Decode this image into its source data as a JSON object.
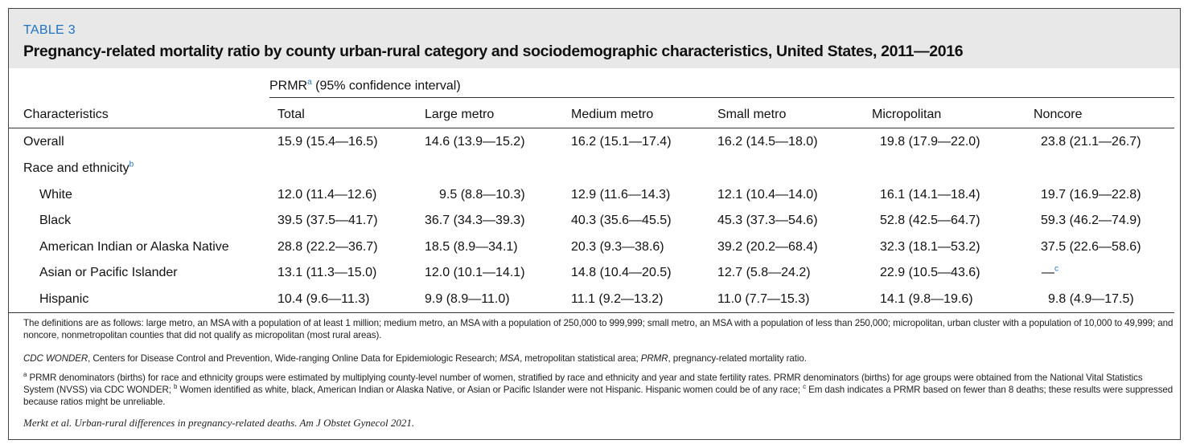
{
  "header": {
    "table_label": "TABLE 3",
    "title": "Pregnancy-related mortality ratio by county urban-rural category and sociodemographic characteristics, United States, 2011—2016"
  },
  "spanner": {
    "label": "PRMR",
    "sup": "a",
    "suffix": " (95% confidence interval)"
  },
  "columns": [
    "Characteristics",
    "Total",
    "Large metro",
    "Medium metro",
    "Small metro",
    "Micropolitan",
    "Noncore"
  ],
  "rows": [
    {
      "label": "Overall",
      "indent": false,
      "values": [
        "15.9 (15.4—16.5)",
        "14.6 (13.9—15.2)",
        "16.2 (15.1—17.4)",
        "16.2 (14.5—18.0)",
        "19.8 (17.9—22.0)",
        "23.8 (21.1—26.7)"
      ]
    },
    {
      "label": "Race and ethnicity",
      "sup": "b",
      "indent": false,
      "values": []
    },
    {
      "label": "White",
      "indent": true,
      "values": [
        "12.0 (11.4—12.6)",
        "9.5 (8.8—10.3)",
        "12.9 (11.6—14.3)",
        "12.1 (10.4—14.0)",
        "16.1 (14.1—18.4)",
        "19.7 (16.9—22.8)"
      ]
    },
    {
      "label": "Black",
      "indent": true,
      "values": [
        "39.5 (37.5—41.7)",
        "36.7 (34.3—39.3)",
        "40.3 (35.6—45.5)",
        "45.3 (37.3—54.6)",
        "52.8 (42.5—64.7)",
        "59.3 (46.2—74.9)"
      ]
    },
    {
      "label": "American Indian or Alaska Native",
      "indent": true,
      "values": [
        "28.8 (22.2—36.7)",
        "18.5 (8.9—34.1)",
        "20.3 (9.3—38.6)",
        "39.2 (20.2—68.4)",
        "32.3 (18.1—53.2)",
        "37.5 (22.6—58.6)"
      ]
    },
    {
      "label": "Asian or Pacific Islander",
      "indent": true,
      "values": [
        "13.1 (11.3—15.0)",
        "12.0 (10.1—14.1)",
        "14.8 (10.4—20.5)",
        "12.7 (5.8—24.2)",
        "22.9 (10.5—43.6)",
        "—"
      ],
      "last_sup": "c"
    },
    {
      "label": "Hispanic",
      "indent": true,
      "values": [
        "10.4 (9.6—11.3)",
        "9.9 (8.9—11.0)",
        "11.1 (9.2—13.2)",
        "11.0 (7.7—15.3)",
        "14.1 (9.8—19.6)",
        "9.8 (4.9—17.5)"
      ]
    }
  ],
  "notes": {
    "definitions": "The definitions are as follows: large metro, an MSA with a population of at least 1 million; medium metro, an MSA with a population of 250,000 to 999,999; small metro, an MSA with a population of less than 250,000; micropolitan, urban cluster with a population of 10,000 to 49,999; and noncore, nonmetropolitan counties that did not qualify as micropolitan (most rural areas).",
    "abbrev_1_term": "CDC WONDER",
    "abbrev_1_text": ", Centers for Disease Control and Prevention, Wide-ranging Online Data for Epidemiologic Research; ",
    "abbrev_2_term": "MSA",
    "abbrev_2_text": ", metropolitan statistical area; ",
    "abbrev_3_term": "PRMR",
    "abbrev_3_text": ", pregnancy-related mortality ratio.",
    "fn_a_mark": "a",
    "fn_a_text": " PRMR denominators (births) for race and ethnicity groups were estimated by multiplying county-level number of women, stratified by race and ethnicity and year and state fertility rates. PRMR denominators (births) for age groups were obtained from the National Vital Statistics System (NVSS) via CDC WONDER; ",
    "fn_b_mark": "b",
    "fn_b_text": " Women identified as white, black, American Indian or Alaska Native, or Asian or Pacific Islander were not Hispanic. Hispanic women could be of any race; ",
    "fn_c_mark": "c",
    "fn_c_text": " Em dash indicates a PRMR based on fewer than 8 deaths; these results were suppressed because ratios might be unreliable.",
    "citation": "Merkt et al. Urban-rural differences in pregnancy-related deaths. Am J Obstet Gynecol 2021."
  }
}
